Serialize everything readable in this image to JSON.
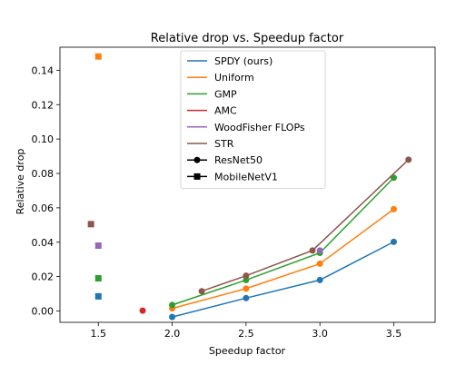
{
  "chart_data": {
    "type": "line",
    "title": "Relative drop vs. Speedup factor",
    "xlabel": "Speedup factor",
    "ylabel": "Relative drop",
    "xlim": [
      1.24,
      3.78
    ],
    "ylim": [
      -0.0066,
      0.1534
    ],
    "xticks": [
      1.5,
      2.0,
      2.5,
      3.0,
      3.5
    ],
    "xtick_labels": [
      "1.5",
      "2.0",
      "2.5",
      "3.0",
      "3.5"
    ],
    "yticks": [
      0.0,
      0.02,
      0.04,
      0.06,
      0.08,
      0.1,
      0.12,
      0.14
    ],
    "ytick_labels": [
      "0.00",
      "0.02",
      "0.04",
      "0.06",
      "0.08",
      "0.10",
      "0.12",
      "0.14"
    ],
    "grid": false,
    "legend_position": "top-center",
    "series": [
      {
        "name": "SPDY (ours)",
        "color": "#1f77b4",
        "resnet50": [
          [
            2.0,
            -0.0035
          ],
          [
            2.5,
            0.0075
          ],
          [
            3.0,
            0.018
          ],
          [
            3.5,
            0.0402
          ]
        ],
        "mobilenetv1": [
          [
            1.5,
            0.0085
          ]
        ]
      },
      {
        "name": "Uniform",
        "color": "#ff7f0e",
        "resnet50": [
          [
            2.0,
            0.0015
          ],
          [
            2.5,
            0.013
          ],
          [
            3.0,
            0.0275
          ],
          [
            3.5,
            0.0592
          ]
        ],
        "mobilenetv1": [
          [
            1.5,
            0.148
          ]
        ]
      },
      {
        "name": "GMP",
        "color": "#2ca02c",
        "resnet50": [
          [
            2.0,
            0.0035
          ],
          [
            2.5,
            0.018
          ],
          [
            3.0,
            0.0338
          ],
          [
            3.5,
            0.0775
          ]
        ],
        "mobilenetv1": [
          [
            1.5,
            0.019
          ]
        ]
      },
      {
        "name": "AMC",
        "color": "#d62728",
        "resnet50": [
          [
            1.8,
            0.0002
          ]
        ],
        "mobilenetv1": []
      },
      {
        "name": "WoodFisher FLOPs",
        "color": "#9467bd",
        "resnet50": [
          [
            3.0,
            0.0352
          ]
        ],
        "mobilenetv1": [
          [
            1.5,
            0.038
          ]
        ]
      },
      {
        "name": "STR",
        "color": "#8c564b",
        "resnet50": [
          [
            2.2,
            0.0115
          ],
          [
            2.5,
            0.0205
          ],
          [
            2.95,
            0.0352
          ],
          [
            3.6,
            0.088
          ]
        ],
        "mobilenetv1": [
          [
            1.45,
            0.0505
          ]
        ]
      }
    ],
    "marker_legend": [
      {
        "name": "ResNet50",
        "marker": "circle"
      },
      {
        "name": "MobileNetV1",
        "marker": "square"
      }
    ]
  }
}
